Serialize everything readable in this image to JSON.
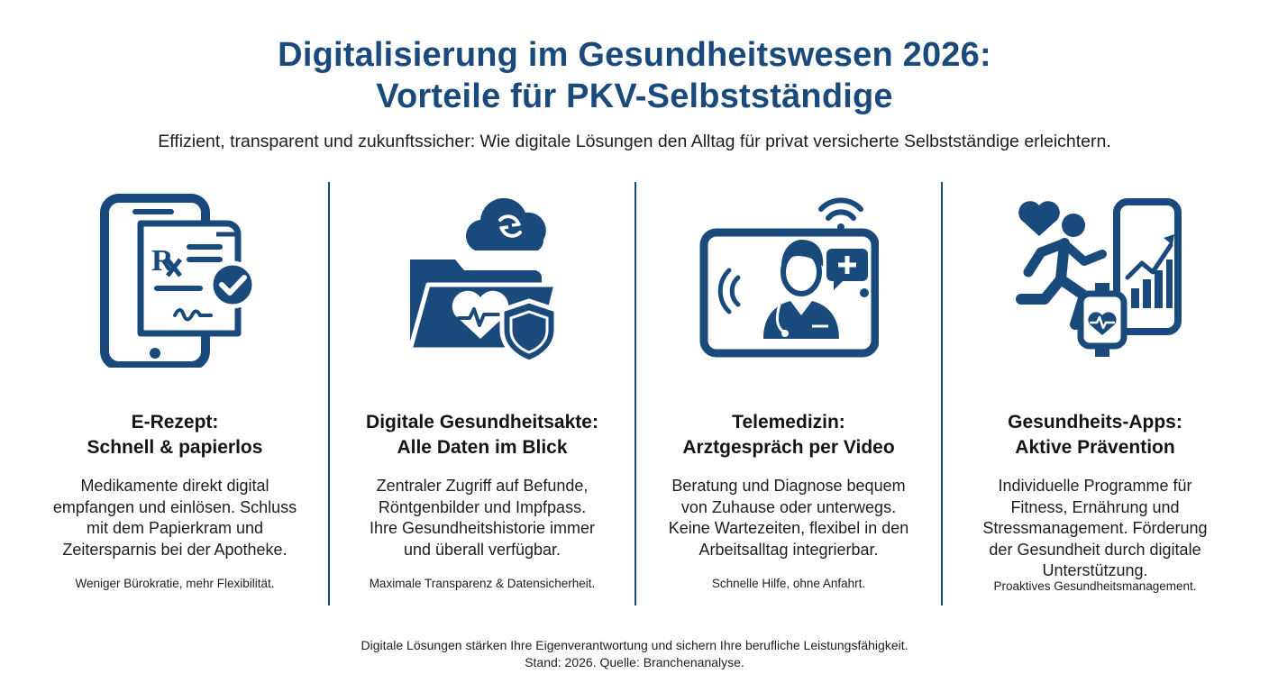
{
  "header": {
    "title_line1": "Digitalisierung im Gesundheitswesen 2026:",
    "title_line2": "Vorteile für PKV-Selbstständige",
    "subtitle": "Effizient, transparent und zukunftssicher: Wie digitale Lösungen den Alltag für privat versicherte Selbstständige erleichtern."
  },
  "colors": {
    "primary": "#1a4a7c",
    "text": "#1d1d1d",
    "background": "#ffffff"
  },
  "columns": [
    {
      "icon": "e-prescription-icon",
      "title": [
        "E-Rezept:",
        "Schnell & papierlos"
      ],
      "body": [
        "Medikamente direkt digital",
        "empfangen und einlösen. Schluss",
        "mit dem Papierkram und",
        "Zeitersparnis bei der Apotheke."
      ],
      "note": "Weniger Bürokratie, mehr Flexibilität."
    },
    {
      "icon": "health-record-icon",
      "title": [
        "Digitale Gesundheitsakte:",
        "Alle Daten im Blick"
      ],
      "body": [
        "Zentraler Zugriff auf Befunde,",
        "Röntgenbilder und Impfpass.",
        "Ihre Gesundheitshistorie immer",
        "und überall verfügbar."
      ],
      "note": "Maximale Transparenz & Datensicherheit."
    },
    {
      "icon": "telemedicine-icon",
      "title": [
        "Telemedizin:",
        "Arztgespräch per Video"
      ],
      "body": [
        "Beratung und Diagnose bequem",
        "von Zuhause oder unterwegs.",
        "Keine Wartezeiten, flexibel in den",
        "Arbeitsalltag integrierbar."
      ],
      "note": "Schnelle Hilfe, ohne Anfahrt."
    },
    {
      "icon": "health-apps-icon",
      "title": [
        "Gesundheits-Apps:",
        "Aktive Prävention"
      ],
      "body": [
        "Individuelle Programme für",
        "Fitness, Ernährung und",
        "Stressmanagement. Förderung",
        "der Gesundheit durch digitale",
        "Unterstützung."
      ],
      "note": "Proaktives Gesundheitsmanagement."
    }
  ],
  "footer": {
    "line1": "Digitale Lösungen stärken Ihre Eigenverantwortung und sichern Ihre berufliche Leistungsfähigkeit.",
    "line2": "Stand: 2026. Quelle: Branchenanalyse."
  }
}
